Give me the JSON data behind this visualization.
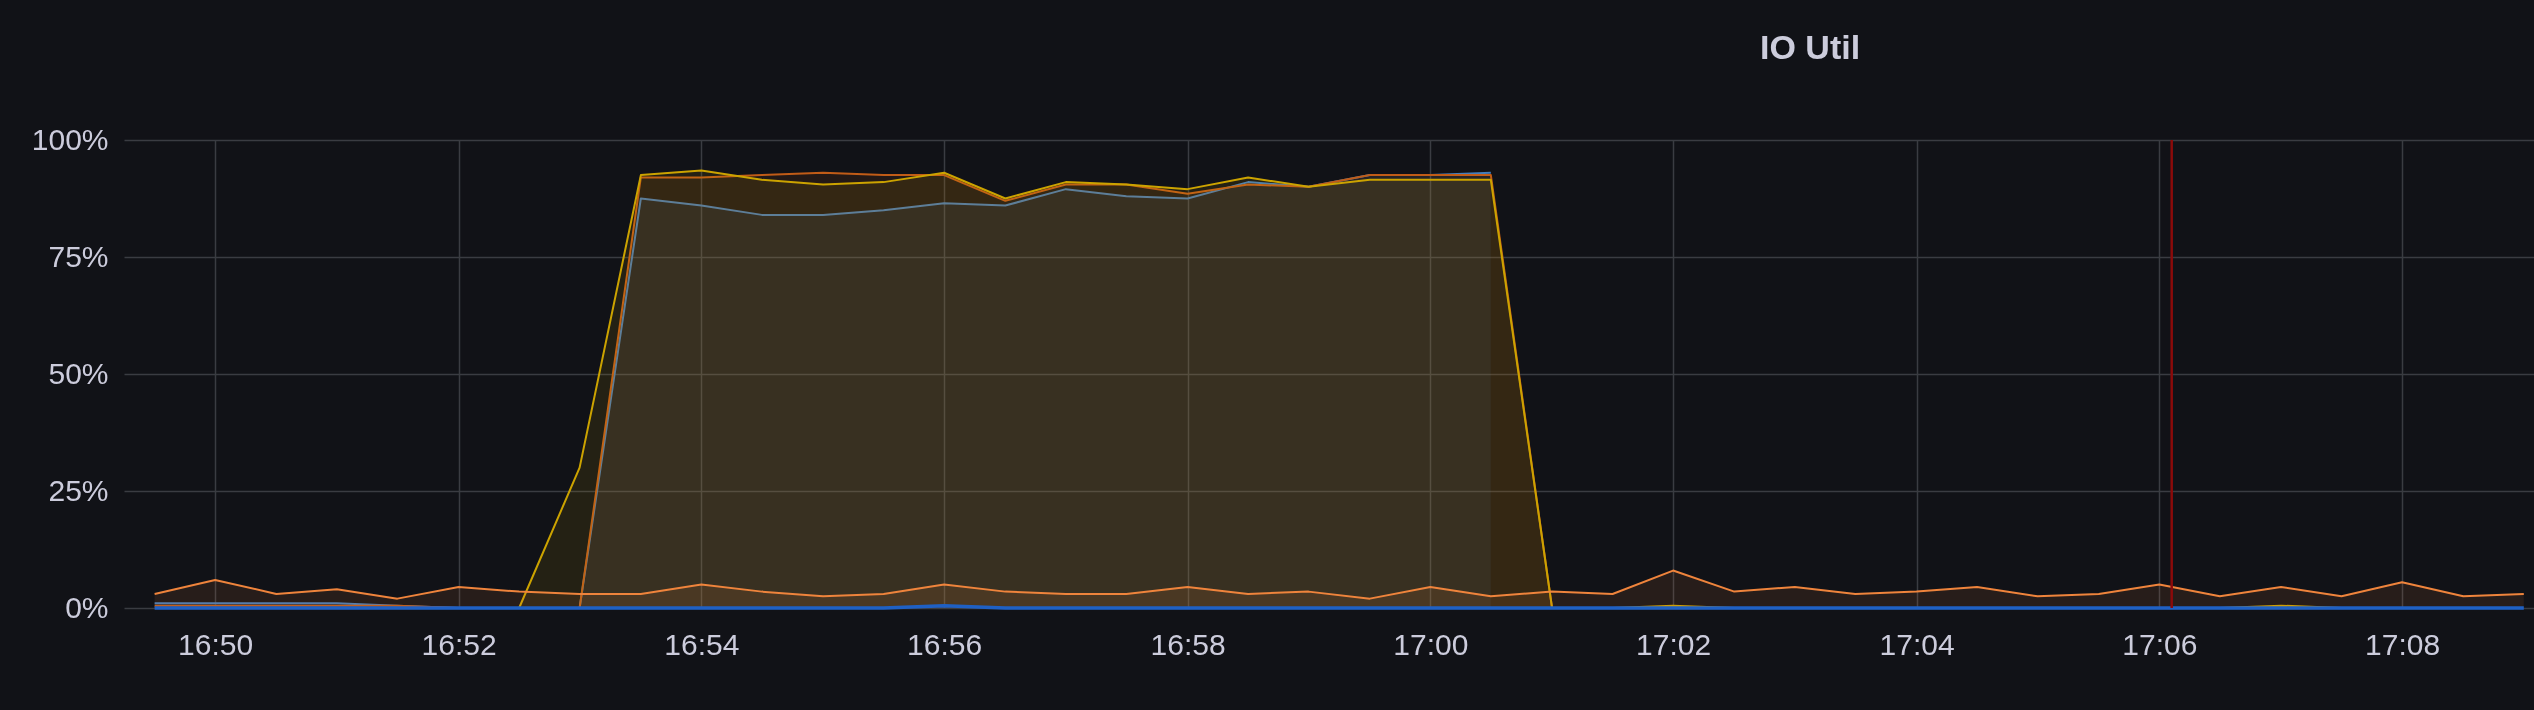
{
  "chart_data": {
    "type": "area",
    "title": "IO Util",
    "x": [
      16.825,
      16.8333,
      16.8417,
      16.85,
      16.8583,
      16.8667,
      16.875,
      16.8833,
      16.8917,
      16.9,
      16.9083,
      16.9167,
      16.925,
      16.9333,
      16.9417,
      16.95,
      16.9583,
      16.9667,
      16.975,
      16.9833,
      16.9917,
      17.0,
      17.0083,
      17.0167,
      17.025,
      17.0333,
      17.0417,
      17.05,
      17.0583,
      17.0667,
      17.075,
      17.0833,
      17.0917,
      17.1,
      17.1083,
      17.1167,
      17.125,
      17.1333,
      17.1417,
      17.15
    ],
    "xlim": [
      16.8208,
      17.1514
    ],
    "xticks": [
      {
        "value": 16.8333,
        "label": "16:50"
      },
      {
        "value": 16.8667,
        "label": "16:52"
      },
      {
        "value": 16.9,
        "label": "16:54"
      },
      {
        "value": 16.9333,
        "label": "16:56"
      },
      {
        "value": 16.9667,
        "label": "16:58"
      },
      {
        "value": 17.0,
        "label": "17:00"
      },
      {
        "value": 17.0333,
        "label": "17:02"
      },
      {
        "value": 17.0667,
        "label": "17:04"
      },
      {
        "value": 17.1,
        "label": "17:06"
      },
      {
        "value": 17.1333,
        "label": "17:08"
      }
    ],
    "ylim": [
      0,
      100
    ],
    "yticks": [
      {
        "value": 0,
        "label": "0%"
      },
      {
        "value": 25,
        "label": "25%"
      },
      {
        "value": 50,
        "label": "50%"
      },
      {
        "value": 75,
        "label": "75%"
      },
      {
        "value": 100,
        "label": "100%"
      }
    ],
    "grid": true,
    "series": [
      {
        "color": "#447ebc",
        "values": [
          1,
          1,
          1,
          1,
          0.5,
          0,
          null,
          0,
          87.5,
          86,
          84,
          84,
          85,
          86.5,
          86,
          89.5,
          88,
          87.5,
          91,
          90,
          92.5,
          92.5,
          93,
          null,
          null,
          null,
          null,
          null,
          null,
          null,
          null,
          null,
          null,
          null,
          null,
          null,
          null,
          null,
          null,
          null
        ]
      },
      {
        "color": "#c15c17",
        "values": [
          0.5,
          0.5,
          0.5,
          0.5,
          0.5,
          0,
          null,
          0,
          92,
          92,
          92.5,
          93,
          92.5,
          92.5,
          87,
          90.5,
          90.5,
          88.5,
          90.5,
          90,
          92.5,
          92.5,
          92.5,
          0,
          null,
          null,
          null,
          null,
          null,
          null,
          null,
          null,
          null,
          null,
          null,
          null,
          null,
          null,
          null,
          null
        ]
      },
      {
        "color": "#cca300",
        "values": [
          null,
          null,
          null,
          null,
          null,
          null,
          0,
          30,
          92.5,
          93.5,
          91.5,
          90.5,
          91,
          93,
          87.5,
          91,
          90.5,
          89.5,
          92,
          90,
          91.5,
          91.5,
          91.5,
          0,
          0,
          0.5,
          0,
          null,
          null,
          null,
          null,
          null,
          null,
          null,
          0,
          0.5,
          0,
          null,
          null,
          null
        ]
      },
      {
        "color": "#ef843c",
        "values": [
          3,
          6,
          3,
          4,
          2,
          4.5,
          3.5,
          3,
          3,
          5,
          3.5,
          2.5,
          3,
          5,
          3.5,
          3,
          3,
          4.5,
          3,
          3.5,
          2,
          4.5,
          2.5,
          3.5,
          3,
          8,
          3.5,
          4.5,
          3,
          3.5,
          4.5,
          2.5,
          3,
          5,
          2.5,
          4.5,
          2.5,
          5.5,
          2.5,
          3
        ]
      },
      {
        "type": "line",
        "color": "#1f60c4",
        "values": [
          0,
          0,
          0,
          0,
          0,
          0,
          0,
          0,
          0,
          0,
          0,
          0,
          0,
          0.5,
          0,
          0,
          0,
          0,
          0,
          0,
          0,
          0,
          0,
          0,
          0,
          0,
          0,
          0,
          0,
          0,
          0,
          0,
          0,
          0,
          0,
          0,
          0,
          0,
          0,
          0
        ]
      }
    ],
    "ref_lines": [
      {
        "axis": "x",
        "value": 17.1017,
        "color": "#8b0a0a"
      }
    ]
  }
}
